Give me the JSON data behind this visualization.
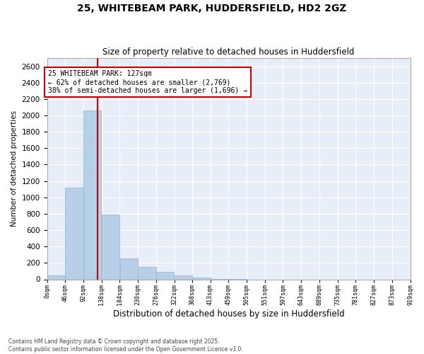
{
  "title1": "25, WHITEBEAM PARK, HUDDERSFIELD, HD2 2GZ",
  "title2": "Size of property relative to detached houses in Huddersfield",
  "xlabel": "Distribution of detached houses by size in Huddersfield",
  "ylabel": "Number of detached properties",
  "bar_color": "#b8cfe8",
  "bar_edgecolor": "#8ab4d8",
  "vline_x": 127,
  "vline_color": "#cc0000",
  "annotation_lines": [
    "25 WHITEBEAM PARK: 127sqm",
    "← 62% of detached houses are smaller (2,769)",
    "38% of semi-detached houses are larger (1,696) →"
  ],
  "annotation_box_color": "#cc0000",
  "bins_left": [
    0,
    46,
    92,
    138,
    184,
    230,
    276,
    322,
    368,
    413,
    459,
    505,
    551,
    597,
    643,
    689,
    735,
    781,
    827,
    873
  ],
  "bin_width": 46,
  "bar_heights": [
    50,
    1120,
    2060,
    790,
    255,
    148,
    90,
    45,
    18,
    5,
    2,
    0,
    0,
    0,
    0,
    0,
    0,
    0,
    0,
    0
  ],
  "ylim": [
    0,
    2700
  ],
  "yticks": [
    0,
    200,
    400,
    600,
    800,
    1000,
    1200,
    1400,
    1600,
    1800,
    2000,
    2200,
    2400,
    2600
  ],
  "xtick_labels": [
    "0sqm",
    "46sqm",
    "92sqm",
    "138sqm",
    "184sqm",
    "230sqm",
    "276sqm",
    "322sqm",
    "368sqm",
    "413sqm",
    "459sqm",
    "505sqm",
    "551sqm",
    "597sqm",
    "643sqm",
    "689sqm",
    "735sqm",
    "781sqm",
    "827sqm",
    "873sqm",
    "919sqm"
  ],
  "footer": "Contains HM Land Registry data © Crown copyright and database right 2025.\nContains public sector information licensed under the Open Government Licence v3.0.",
  "plot_bg_color": "#e8eef8",
  "fig_bg_color": "#ffffff",
  "grid_color": "#ffffff"
}
